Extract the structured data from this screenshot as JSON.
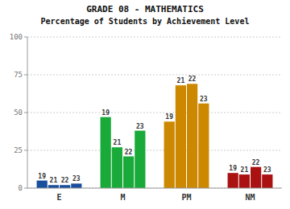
{
  "chart_data": {
    "type": "bar",
    "title": "GRADE 08 - MATHEMATICS",
    "subtitle": "Percentage of Students by Achievement Level",
    "categories": [
      "E",
      "M",
      "PM",
      "NM"
    ],
    "colors": [
      "#1a4f9e",
      "#1aaa3a",
      "#cc8800",
      "#aa1111"
    ],
    "series": [
      {
        "name": "19",
        "values": [
          5,
          47,
          44,
          10
        ]
      },
      {
        "name": "21",
        "values": [
          2,
          27,
          68,
          9
        ]
      },
      {
        "name": "22",
        "values": [
          2,
          21,
          69,
          14
        ]
      },
      {
        "name": "23",
        "values": [
          3,
          38,
          56,
          9
        ]
      }
    ],
    "ylim": [
      0,
      100
    ],
    "yticks": [
      0,
      25,
      50,
      75,
      100
    ],
    "grid": true
  }
}
